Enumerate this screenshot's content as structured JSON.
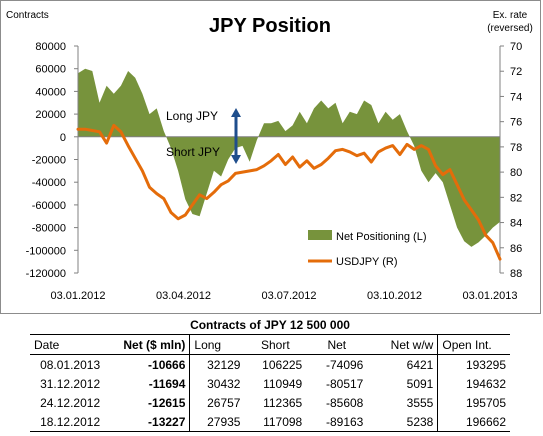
{
  "chart_data": {
    "type": "area",
    "title": "JPY Position",
    "left_axis_label": "Contracts",
    "right_axis_label": [
      "Ex. rate",
      "(reversed)"
    ],
    "left_ticks": [
      "80000",
      "60000",
      "40000",
      "20000",
      "0",
      "-20000",
      "-40000",
      "-60000",
      "-80000",
      "-100000",
      "-120000"
    ],
    "left_ylim": [
      -120000,
      80000
    ],
    "right_ticks": [
      "70",
      "72",
      "74",
      "76",
      "78",
      "80",
      "82",
      "84",
      "86",
      "88"
    ],
    "right_ylim": [
      70,
      88
    ],
    "right_reversed": true,
    "x_tick_labels": [
      "03.01.2012",
      "03.04.2012",
      "03.07.2012",
      "03.10.2012",
      "03.01.2013"
    ],
    "annotations": {
      "long": "Long JPY",
      "short": "Short JPY"
    },
    "colors": {
      "area": "#77933c",
      "line": "#e46c0a",
      "arrow": "#1f4e8c"
    },
    "legend_position": "bottom-right",
    "series": [
      {
        "name": "Net Positioning (L)",
        "axis": "left",
        "values": [
          56000,
          60000,
          58000,
          30000,
          45000,
          38000,
          45000,
          58000,
          52000,
          38000,
          20000,
          25000,
          5000,
          -10000,
          -30000,
          -55000,
          -68000,
          -70000,
          -50000,
          -30000,
          -35000,
          -20000,
          -10000,
          -8000,
          -22000,
          -3000,
          12000,
          12000,
          14000,
          5000,
          10000,
          22000,
          12000,
          25000,
          32000,
          25000,
          30000,
          12000,
          22000,
          20000,
          32000,
          28000,
          12000,
          22000,
          15000,
          20000,
          5000,
          -8000,
          -30000,
          -40000,
          -32000,
          -40000,
          -60000,
          -80000,
          -92000,
          -97000,
          -93000,
          -87000,
          -80000,
          -75000
        ]
      },
      {
        "name": "USDJPY (R)",
        "axis": "right",
        "values": [
          76.6,
          76.6,
          76.7,
          76.8,
          77.7,
          76.3,
          76.8,
          77.9,
          78.9,
          79.9,
          81.2,
          81.7,
          82.1,
          83.2,
          83.7,
          83.4,
          82.6,
          81.8,
          82.1,
          81.6,
          81.0,
          80.7,
          80.1,
          80.0,
          79.9,
          79.8,
          79.5,
          79.1,
          78.6,
          79.4,
          78.8,
          79.6,
          79.1,
          79.7,
          79.4,
          78.9,
          78.3,
          78.2,
          78.4,
          78.7,
          78.5,
          79.2,
          78.4,
          78.1,
          77.9,
          78.6,
          77.8,
          78.2,
          77.9,
          78.2,
          79.5,
          80.2,
          79.8,
          81.0,
          82.2,
          83.0,
          83.8,
          85.0,
          85.6,
          86.9
        ]
      }
    ]
  },
  "table": {
    "title": "Contracts of JPY 12 500 000",
    "headers": [
      "Date",
      "Net ($ mln)",
      "Long",
      "Short",
      "Net",
      "Net w/w",
      "Open Int."
    ],
    "rows": [
      [
        "08.01.2013",
        "-10666",
        "32129",
        "106225",
        "-74096",
        "6421",
        "193295"
      ],
      [
        "31.12.2012",
        "-11694",
        "30432",
        "110949",
        "-80517",
        "5091",
        "194632"
      ],
      [
        "24.12.2012",
        "-12615",
        "26757",
        "112365",
        "-85608",
        "3555",
        "195705"
      ],
      [
        "18.12.2012",
        "-13227",
        "27935",
        "117098",
        "-89163",
        "5238",
        "196662"
      ]
    ]
  }
}
